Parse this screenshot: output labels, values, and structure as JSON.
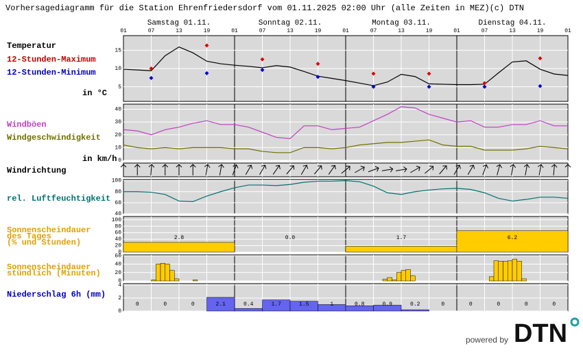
{
  "title": "Vorhersagediagramm für die Station Ehrenfriedersdorf vom 01.11.2025 02:00 Uhr (alle Zeiten in MEZ)",
  "copyright": "(c) DTN",
  "days": [
    "Samstag 01.11.",
    "Sonntag 02.11.",
    "Montag 03.11.",
    "Dienstag 04.11."
  ],
  "hour_labels": [
    "01",
    "07",
    "13",
    "19",
    "01",
    "07",
    "13",
    "19",
    "01",
    "07",
    "13",
    "19",
    "01",
    "07",
    "13",
    "19",
    "01"
  ],
  "powered_by": "powered by",
  "logo": "DTN",
  "panels": {
    "temperature": {
      "labels": [
        "Temperatur",
        "12-Stunden-Maximum",
        "12-Stunden-Minimum",
        "in °C"
      ],
      "ylim": [
        1,
        19
      ],
      "yticks": [
        5,
        10,
        15
      ],
      "values": [
        9.8,
        9.6,
        9.4,
        13.5,
        15.9,
        14.3,
        12.0,
        11.3,
        10.9,
        10.6,
        10.2,
        10.8,
        10.4,
        9.2,
        7.9,
        7.3,
        6.7,
        6.0,
        5.3,
        6.3,
        8.4,
        7.8,
        5.8,
        5.7,
        5.6,
        5.6,
        5.7,
        8.8,
        11.8,
        12.1,
        9.8,
        8.5,
        8.1
      ],
      "max": [
        10.0,
        16.3,
        12.5,
        11.3,
        8.6,
        8.6,
        6.0,
        12.8
      ],
      "min": [
        7.4,
        8.7,
        9.6,
        7.7,
        5.0,
        5.0,
        5.0,
        5.2
      ]
    },
    "wind": {
      "labels": [
        "Windböen",
        "Windgeschwindigkeit",
        "in km/h"
      ],
      "ylim": [
        0,
        44
      ],
      "yticks": [
        0,
        10,
        20,
        30,
        40
      ],
      "gusts": [
        24,
        23,
        20,
        24,
        26,
        29,
        31,
        28,
        28,
        26,
        22,
        18,
        17,
        27,
        27,
        24,
        25,
        26,
        31,
        36,
        42,
        41,
        36,
        33,
        30,
        31,
        26,
        26,
        28,
        28,
        31,
        27,
        27
      ],
      "speed": [
        12,
        10,
        9,
        10,
        9,
        10,
        10,
        10,
        9,
        9,
        7,
        6,
        6,
        10,
        10,
        9,
        10,
        12,
        13,
        14,
        14,
        15,
        16,
        12,
        11,
        11,
        8,
        8,
        8,
        9,
        11,
        10,
        9
      ]
    },
    "wind_direction": {
      "label": "Windrichtung",
      "degrees": [
        0,
        0,
        5,
        0,
        0,
        0,
        10,
        10,
        20,
        30,
        30,
        35,
        40,
        30,
        40,
        35,
        50,
        60,
        70,
        80,
        80,
        60,
        50,
        40,
        30,
        30,
        20,
        15,
        10,
        10,
        10,
        5,
        0
      ]
    },
    "humidity": {
      "label": "rel. Luftfeuchtigkeit",
      "ylim": [
        40,
        102
      ],
      "yticks": [
        40,
        60,
        80,
        100
      ],
      "values": [
        80,
        80,
        79,
        75,
        63,
        62,
        72,
        80,
        87,
        92,
        92,
        91,
        93,
        97,
        99,
        99,
        100,
        98,
        90,
        78,
        75,
        80,
        83,
        85,
        86,
        84,
        78,
        68,
        63,
        66,
        70,
        70,
        68
      ]
    },
    "sunshine_daily": {
      "labels": [
        "Sonnenscheindauer",
        "des Tages",
        "(% und Stunden)"
      ],
      "ylim": [
        0,
        110
      ],
      "yticks": [
        0,
        20,
        40,
        60,
        80,
        100
      ],
      "percent": [
        30,
        0,
        18,
        66
      ],
      "hours": [
        2.8,
        0,
        1.7,
        6.2
      ],
      "hours_labels": [
        "2.8",
        "0.0",
        "1.7",
        "6.2"
      ]
    },
    "sunshine_hourly": {
      "labels": [
        "Sonnenscheindauer",
        "stündlich (Minuten)"
      ],
      "ylim": [
        0,
        62
      ],
      "yticks": [
        0,
        20,
        40,
        60
      ],
      "values": [
        0,
        0,
        0,
        0,
        0,
        0,
        2,
        40,
        42,
        40,
        25,
        5,
        0,
        0,
        0,
        2,
        0,
        0,
        0,
        0,
        0,
        0,
        0,
        0,
        0,
        0,
        0,
        0,
        0,
        0,
        0,
        0,
        0,
        0,
        0,
        0,
        0,
        0,
        0,
        0,
        0,
        0,
        0,
        0,
        0,
        0,
        0,
        0,
        0,
        0,
        0,
        0,
        0,
        0,
        0,
        0,
        4,
        8,
        2,
        20,
        25,
        27,
        12,
        0,
        0,
        0,
        0,
        0,
        0,
        0,
        0,
        0,
        0,
        0,
        0,
        0,
        0,
        0,
        0,
        10,
        48,
        47,
        47,
        48,
        52,
        47,
        5,
        0,
        0,
        0,
        0,
        0,
        0,
        0,
        0,
        0
      ]
    },
    "precipitation": {
      "label": "Niederschlag 6h (mm)",
      "ylim": [
        0,
        4.2
      ],
      "yticks": [
        0,
        2,
        4
      ],
      "values": [
        0,
        0,
        0,
        2.1,
        0.4,
        1.7,
        1.5,
        1,
        0.8,
        0.9,
        0.2,
        0,
        0,
        0,
        0,
        0
      ]
    }
  }
}
